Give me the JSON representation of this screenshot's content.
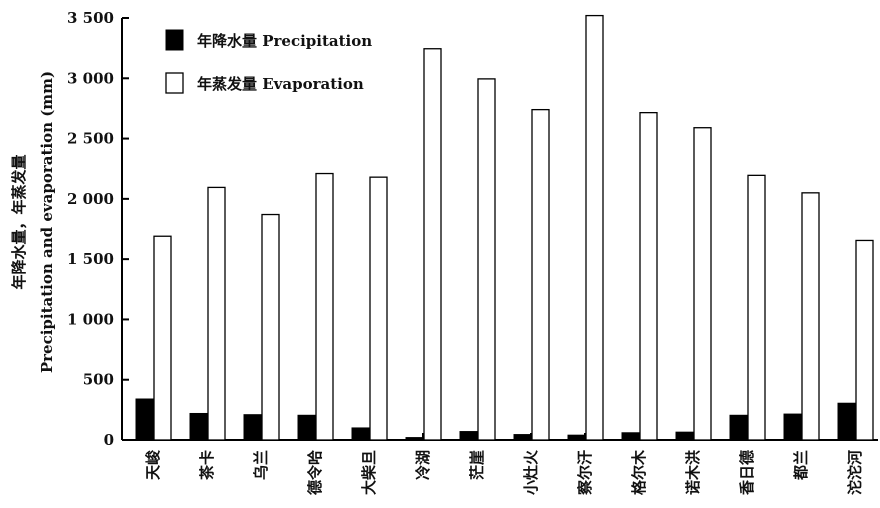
{
  "chart_data": {
    "type": "bar",
    "categories": [
      "天峻",
      "茶卡",
      "乌兰",
      "德令哈",
      "大柴旦",
      "冷湖",
      "茫崖",
      "小灶火",
      "察尔汗",
      "格尔木",
      "诺木洪",
      "香日德",
      "都兰",
      "沱沱河"
    ],
    "series": [
      {
        "name": "年降水量 Precipitation",
        "fill": "#000000",
        "values": [
          340,
          220,
          210,
          205,
          100,
          20,
          70,
          45,
          40,
          60,
          65,
          205,
          215,
          305
        ]
      },
      {
        "name": "年蒸发量 Evaporation",
        "fill": "#ffffff",
        "values": [
          1690,
          2095,
          1870,
          2210,
          2180,
          3245,
          2995,
          2740,
          3520,
          2715,
          2590,
          2195,
          2050,
          1655
        ]
      }
    ],
    "ylabel_cn": "年降水量，年蒸发量",
    "ylabel_en": "Precipitation and evaporation (mm)",
    "ylim": [
      0,
      3500
    ],
    "yticks": [
      0,
      500,
      1000,
      1500,
      2000,
      2500,
      3000,
      3500
    ],
    "ytick_labels": [
      "0",
      "500",
      "1 000",
      "1 500",
      "2 000",
      "2 500",
      "3 000",
      "3 500"
    ],
    "legend_position": "top-left",
    "grid": false
  }
}
